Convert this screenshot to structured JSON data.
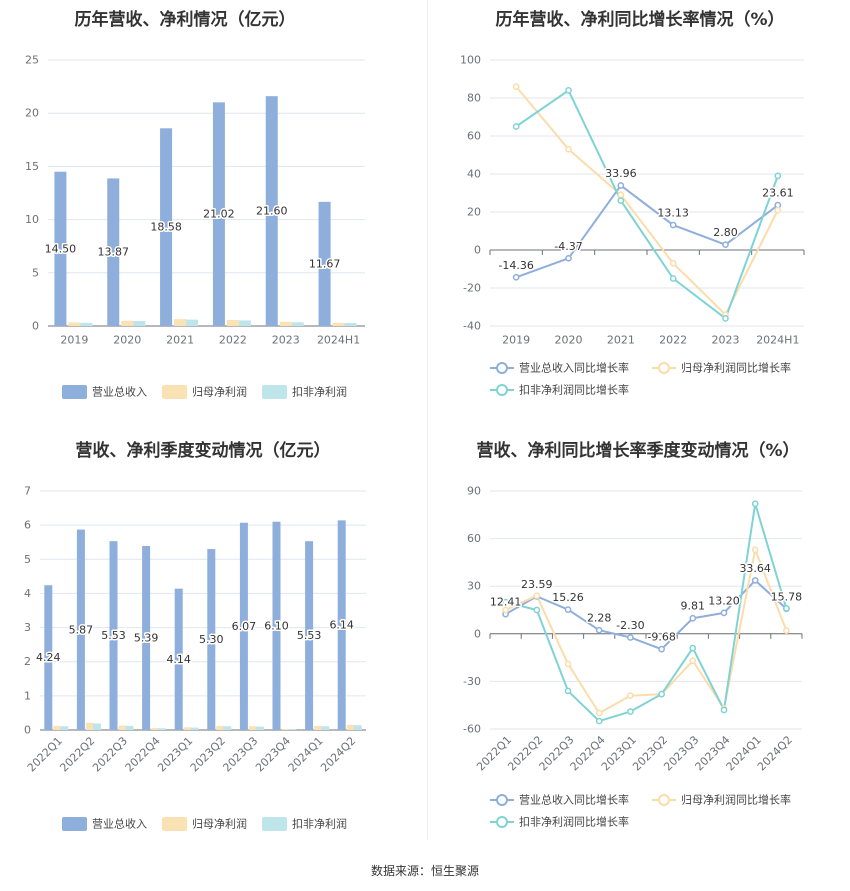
{
  "source": "数据来源：恒生聚源",
  "colors": {
    "revenue": "#8eaedc",
    "parent_profit": "#fbe2b4",
    "deducted_profit": "#bde5ea",
    "revenue_line": "#8eaedc",
    "parent_line": "#fcdcaa",
    "deducted_line": "#7fd3d5"
  },
  "chart_data": [
    {
      "type": "bar",
      "title": "历年营收、净利情况（亿元）",
      "categories": [
        "2019",
        "2020",
        "2021",
        "2022",
        "2023",
        "2024H1"
      ],
      "ylim": [
        0,
        25
      ],
      "yticks": [
        0,
        5,
        10,
        15,
        20,
        25
      ],
      "legend_position": "bottom",
      "series": [
        {
          "name": "营业总收入",
          "values": [
            14.5,
            13.87,
            18.58,
            21.02,
            21.6,
            11.67
          ],
          "labels": [
            "14.50",
            "13.87",
            "18.58",
            "21.02",
            "21.60",
            "11.67"
          ]
        },
        {
          "name": "归母净利润",
          "values": [
            0.33,
            0.49,
            0.65,
            0.57,
            0.4,
            0.3
          ]
        },
        {
          "name": "扣非净利润",
          "values": [
            0.3,
            0.47,
            0.6,
            0.52,
            0.35,
            0.28
          ]
        }
      ]
    },
    {
      "type": "line",
      "title": "历年营收、净利同比增长率情况（%）",
      "categories": [
        "2019",
        "2020",
        "2021",
        "2022",
        "2023",
        "2024H1"
      ],
      "ylim": [
        -40,
        100
      ],
      "yticks": [
        -40,
        -20,
        0,
        20,
        40,
        60,
        80,
        100
      ],
      "legend_position": "bottom",
      "series": [
        {
          "name": "营业总收入同比增长率",
          "values": [
            -14.36,
            -4.37,
            33.96,
            13.13,
            2.8,
            23.61
          ],
          "labels": [
            "-14.36",
            "-4.37",
            "33.96",
            "13.13",
            "2.80",
            "23.61"
          ]
        },
        {
          "name": "归母净利润同比增长率",
          "values": [
            86,
            53,
            29,
            -7,
            -34,
            21
          ]
        },
        {
          "name": "扣非净利润同比增长率",
          "values": [
            65,
            84,
            26,
            -15,
            -36,
            39
          ]
        }
      ]
    },
    {
      "type": "bar",
      "title": "营收、净利季度变动情况（亿元）",
      "categories": [
        "2022Q1",
        "2022Q2",
        "2022Q3",
        "2022Q4",
        "2023Q1",
        "2023Q2",
        "2023Q3",
        "2023Q4",
        "2024Q1",
        "2024Q2"
      ],
      "ylim": [
        0,
        7
      ],
      "yticks": [
        0,
        1,
        2,
        3,
        4,
        5,
        6,
        7
      ],
      "legend_position": "bottom",
      "series": [
        {
          "name": "营业总收入",
          "values": [
            4.24,
            5.87,
            5.53,
            5.39,
            4.14,
            5.3,
            6.07,
            6.1,
            5.53,
            6.14
          ],
          "labels": [
            "4.24",
            "5.87",
            "5.53",
            "5.39",
            "4.14",
            "5.30",
            "6.07",
            "6.10",
            "5.53",
            "6.14"
          ]
        },
        {
          "name": "归母净利润",
          "values": [
            0.12,
            0.21,
            0.13,
            0.06,
            0.08,
            0.12,
            0.11,
            0.03,
            0.12,
            0.15
          ]
        },
        {
          "name": "扣非净利润",
          "values": [
            0.11,
            0.19,
            0.12,
            0.05,
            0.07,
            0.11,
            0.1,
            0.02,
            0.11,
            0.14
          ]
        }
      ]
    },
    {
      "type": "line",
      "title": "营收、净利同比增长率季度变动情况（%）",
      "categories": [
        "2022Q1",
        "2022Q2",
        "2022Q3",
        "2022Q4",
        "2023Q1",
        "2023Q2",
        "2023Q3",
        "2023Q4",
        "2024Q1",
        "2024Q2"
      ],
      "ylim": [
        -60,
        90
      ],
      "yticks": [
        -60,
        -30,
        0,
        30,
        60,
        90
      ],
      "legend_position": "bottom",
      "series": [
        {
          "name": "营业总收入同比增长率",
          "values": [
            12.41,
            23.59,
            15.26,
            2.28,
            -2.3,
            -9.68,
            9.81,
            13.2,
            33.64,
            15.78
          ],
          "labels": [
            "12.41",
            "23.59",
            "15.26",
            "2.28",
            "-2.30",
            "-9.68",
            "9.81",
            "13.20",
            "33.64",
            "15.78"
          ]
        },
        {
          "name": "归母净利润同比增长率",
          "values": [
            15,
            24,
            -19,
            -50,
            -39,
            -38,
            -17,
            -47,
            53,
            2
          ]
        },
        {
          "name": "扣非净利润同比增长率",
          "values": [
            20,
            15,
            -36,
            -55,
            -49,
            -38,
            -9,
            -48,
            82,
            16
          ]
        }
      ]
    }
  ]
}
